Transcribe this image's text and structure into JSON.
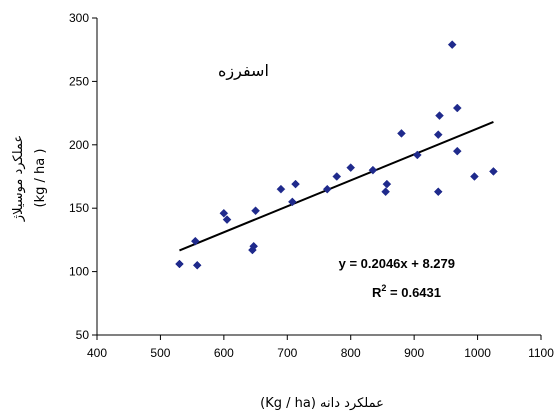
{
  "chart_data": {
    "type": "scatter",
    "xlabel": "(Kg / ha) عملکرد دانه",
    "ylabel_line1": "عملکرد موسیلاژ",
    "ylabel_line2": "(kg / ha )",
    "annotation": "اسفرزه",
    "xlim": [
      400,
      1100
    ],
    "ylim": [
      50,
      300
    ],
    "xticks": [
      400,
      500,
      600,
      700,
      800,
      900,
      1000,
      1100
    ],
    "yticks": [
      50,
      100,
      150,
      200,
      250,
      300
    ],
    "marker_color": "#1f2a8c",
    "trend_color": "#000000",
    "points": [
      {
        "x": 530,
        "y": 106
      },
      {
        "x": 555,
        "y": 124
      },
      {
        "x": 558,
        "y": 105
      },
      {
        "x": 600,
        "y": 146
      },
      {
        "x": 605,
        "y": 141
      },
      {
        "x": 645,
        "y": 117
      },
      {
        "x": 647,
        "y": 120
      },
      {
        "x": 650,
        "y": 148
      },
      {
        "x": 690,
        "y": 165
      },
      {
        "x": 708,
        "y": 155
      },
      {
        "x": 713,
        "y": 169
      },
      {
        "x": 763,
        "y": 165
      },
      {
        "x": 778,
        "y": 175
      },
      {
        "x": 800,
        "y": 182
      },
      {
        "x": 835,
        "y": 180
      },
      {
        "x": 855,
        "y": 163
      },
      {
        "x": 857,
        "y": 169
      },
      {
        "x": 880,
        "y": 209
      },
      {
        "x": 905,
        "y": 192
      },
      {
        "x": 938,
        "y": 208
      },
      {
        "x": 940,
        "y": 223
      },
      {
        "x": 938,
        "y": 163
      },
      {
        "x": 960,
        "y": 279
      },
      {
        "x": 968,
        "y": 229
      },
      {
        "x": 968,
        "y": 195
      },
      {
        "x": 995,
        "y": 175
      },
      {
        "x": 1025,
        "y": 179
      }
    ],
    "trendline": {
      "slope": 0.2046,
      "intercept": 8.279,
      "x_range": [
        530,
        1025
      ]
    },
    "equation_label": "y = 0.2046x + 8.279",
    "r2_prefix": "R",
    "r2_sup": "2",
    "r2_value": " = 0.6431"
  }
}
